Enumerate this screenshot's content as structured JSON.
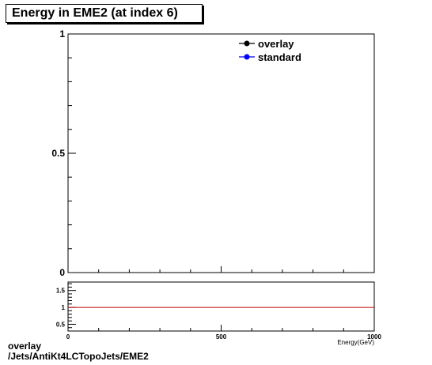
{
  "title": "Energy in EME2 (at index 6)",
  "chart_data": [
    {
      "type": "line",
      "series": [
        {
          "name": "overlay",
          "color": "#000000",
          "marker": "circle",
          "values": []
        },
        {
          "name": "standard",
          "color": "#0000ff",
          "marker": "circle",
          "values": []
        }
      ],
      "xlim": [
        0,
        1000
      ],
      "ylim": [
        0,
        1
      ],
      "yticks": [
        {
          "value": 0,
          "label": "0"
        },
        {
          "value": 0.5,
          "label": "0.5"
        },
        {
          "value": 1,
          "label": "1"
        }
      ],
      "legend": "top-right",
      "grid": false
    },
    {
      "type": "line",
      "series": [
        {
          "name": "",
          "color": "#c00000",
          "values": [
            1,
            1
          ]
        }
      ],
      "x": [
        0,
        1000
      ],
      "xlim": [
        0,
        1000
      ],
      "ylim": [
        0.3,
        1.75
      ],
      "xticks": [
        {
          "value": 0,
          "label": "0"
        },
        {
          "value": 500,
          "label": "500"
        },
        {
          "value": 1000,
          "label": "1000"
        }
      ],
      "yticks": [
        {
          "value": 0.5,
          "label": "0.5"
        },
        {
          "value": 1,
          "label": "1"
        },
        {
          "value": 1.5,
          "label": "1.5"
        }
      ],
      "xlabel": "Energy(GeV)",
      "grid": false
    }
  ],
  "footer": {
    "line1": "overlay",
    "line2": "/Jets/AntiKt4LCTopoJets/EME2"
  }
}
